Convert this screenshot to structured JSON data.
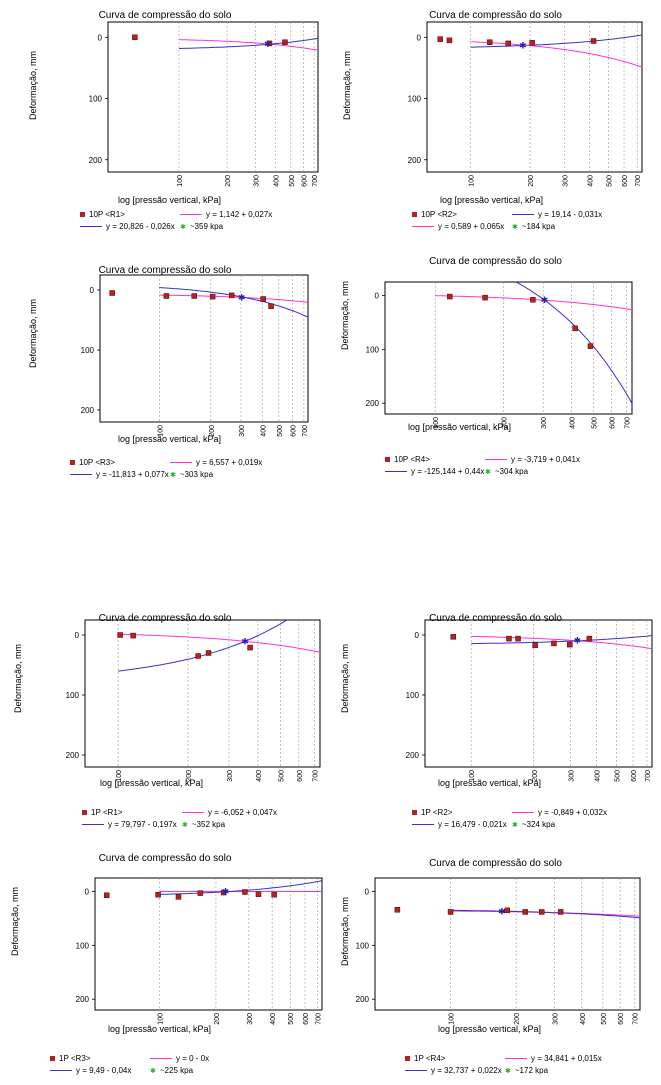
{
  "chart_data": [
    {
      "type": "line",
      "title": "Curva de compressão do solo",
      "xlabel": "log [pressão vertical, kPa]",
      "ylabel": "Deformação, mm",
      "xscale": "log",
      "xlim": [
        36,
        740
      ],
      "ylim": [
        0,
        200
      ],
      "y_ticks": [
        0,
        100,
        200
      ],
      "x_ticks": [
        100,
        200,
        300,
        400,
        500,
        600,
        700
      ],
      "series": [
        {
          "name": "10P <R1>",
          "kind": "points",
          "color": "#b22222",
          "x": [
            53,
            368,
            460
          ],
          "y": [
            0,
            10,
            8
          ]
        }
      ],
      "fits": [
        {
          "label": "y = 1,142 + 0,027x",
          "color": "#ff33cc",
          "a": 1.142,
          "b": 0.027,
          "x_from": 100
        },
        {
          "label": "y = 20,826 - 0,026x",
          "color": "#3333cc",
          "a": 20.826,
          "b": -0.026,
          "x_from": 100
        }
      ],
      "marker": {
        "label": "~359 kpa",
        "x": 359
      },
      "legend": [
        "10P <R1>",
        "y = 1,142 + 0,027x",
        "y = 20,826 - 0,026x",
        "~359 kpa"
      ]
    },
    {
      "type": "line",
      "title": "Curva de compressão do solo",
      "xlabel": "log [pressão vertical, kPa]",
      "ylabel": "Deformação, mm",
      "xscale": "log",
      "xlim": [
        60,
        740
      ],
      "ylim": [
        0,
        200
      ],
      "y_ticks": [
        0,
        100,
        200
      ],
      "x_ticks": [
        100,
        200,
        300,
        400,
        500,
        600,
        700
      ],
      "series": [
        {
          "name": "10P <R2>",
          "kind": "points",
          "color": "#b22222",
          "x": [
            70,
            78,
            125,
            155,
            205,
            420
          ],
          "y": [
            3,
            5,
            8,
            10,
            9,
            6
          ]
        }
      ],
      "fits": [
        {
          "label": "y = 19,14 - 0,031x",
          "color": "#3333cc",
          "a": 19.14,
          "b": -0.031,
          "x_from": 100
        },
        {
          "label": "y = 0,589 + 0,065x",
          "color": "#ff33cc",
          "a": 0.589,
          "b": 0.065,
          "x_from": 100
        }
      ],
      "marker": {
        "label": "~184 kpa",
        "x": 184
      },
      "legend": [
        "10P <R2>",
        "y = 19,14 - 0,031x",
        "y = 0,589 + 0,065x",
        "~184 kpa"
      ]
    },
    {
      "type": "line",
      "title": "Curva de compressão do solo",
      "xlabel": "log [pressão vertical, kPa]",
      "ylabel": "Deformação, mm",
      "xscale": "log",
      "xlim": [
        45,
        740
      ],
      "ylim": [
        0,
        200
      ],
      "y_ticks": [
        0,
        100,
        200
      ],
      "x_ticks": [
        100,
        200,
        300,
        400,
        500,
        600,
        700
      ],
      "series": [
        {
          "name": "10P <R3>",
          "kind": "points",
          "color": "#b22222",
          "x": [
            53,
            110,
            160,
            205,
            265,
            405,
            450
          ],
          "y": [
            5,
            10,
            10,
            11,
            9,
            15,
            27
          ]
        }
      ],
      "fits": [
        {
          "label": "y = 6,557 + 0,019x",
          "color": "#ff33cc",
          "a": 6.557,
          "b": 0.019,
          "x_from": 100
        },
        {
          "label": "y = -11,813 + 0,077x",
          "color": "#3333cc",
          "a": -11.813,
          "b": 0.077,
          "x_from": 100
        }
      ],
      "marker": {
        "label": "~303 kpa",
        "x": 303
      },
      "legend": [
        "10P <R3>",
        "y = 6,557 + 0,019x",
        "y = -11,813 + 0,077x",
        "~303 kpa"
      ]
    },
    {
      "type": "line",
      "title": "Curva de compressão do solo",
      "xlabel": "log [pressão vertical, kPa]",
      "ylabel": "Deformação, mm",
      "xscale": "log",
      "xlim": [
        60,
        740
      ],
      "ylim": [
        0,
        200
      ],
      "y_ticks": [
        0,
        100,
        200
      ],
      "x_ticks": [
        100,
        200,
        300,
        400,
        500,
        600,
        700
      ],
      "series": [
        {
          "name": "10P <R4>",
          "kind": "points",
          "color": "#b22222",
          "x": [
            116,
            166,
            270,
            415,
            485
          ],
          "y": [
            2,
            4,
            8,
            61,
            94
          ]
        }
      ],
      "fits": [
        {
          "label": "y = -3,719 + 0,041x",
          "color": "#ff33cc",
          "a": -3.719,
          "b": 0.041,
          "x_from": 100
        },
        {
          "label": "y = -125,144 + 0,44x",
          "color": "#3333cc",
          "a": -125.144,
          "b": 0.44,
          "x_from": 160
        }
      ],
      "marker": {
        "label": "~304 kpa",
        "x": 304
      },
      "legend": [
        "10P <R4>",
        "y = -3,719 + 0,041x",
        "y = -125,144 + 0,44x",
        "~304 kpa"
      ]
    },
    {
      "type": "line",
      "title": "Curva de compressão do solo",
      "xlabel": "log [pressão vertical, kPa]",
      "ylabel": "Deformação, mm",
      "xscale": "log",
      "xlim": [
        72,
        740
      ],
      "ylim": [
        0,
        200
      ],
      "y_ticks": [
        0,
        100,
        200
      ],
      "x_ticks": [
        100,
        200,
        300,
        400,
        500,
        600,
        700
      ],
      "series": [
        {
          "name": "1P <R1>",
          "kind": "points",
          "color": "#b22222",
          "x": [
            102,
            116,
            221,
            245,
            370
          ],
          "y": [
            0,
            1,
            35,
            30,
            21
          ]
        }
      ],
      "fits": [
        {
          "label": "y = -6,052 + 0,047x",
          "color": "#ff33cc",
          "a": -6.052,
          "b": 0.047,
          "x_from": 100
        },
        {
          "label": "y = 79,797 - 0,197x",
          "color": "#3333cc",
          "a": 79.797,
          "b": -0.197,
          "x_from": 100
        }
      ],
      "marker": {
        "label": "~352 kpa",
        "x": 352
      },
      "legend": [
        "1P <R1>",
        "y = -6,052 + 0,047x",
        "y = 79,797 - 0,197x",
        "~352 kpa"
      ]
    },
    {
      "type": "line",
      "title": "Curva de compressão do solo",
      "xlabel": "log [pressão vertical, kPa]",
      "ylabel": "Deformação, mm",
      "xscale": "log",
      "xlim": [
        60,
        740
      ],
      "ylim": [
        0,
        200
      ],
      "y_ticks": [
        0,
        100,
        200
      ],
      "x_ticks": [
        100,
        200,
        300,
        400,
        500,
        600,
        700
      ],
      "series": [
        {
          "name": "1P <R2>",
          "kind": "points",
          "color": "#b22222",
          "x": [
            82,
            152,
            168,
            203,
            250,
            298,
            370
          ],
          "y": [
            3,
            6,
            6,
            17,
            14,
            16,
            6
          ]
        }
      ],
      "fits": [
        {
          "label": "y = -0,849 + 0,032x",
          "color": "#ff33cc",
          "a": -0.849,
          "b": 0.032,
          "x_from": 100
        },
        {
          "label": "y = 16,479 - 0,021x",
          "color": "#3333cc",
          "a": 16.479,
          "b": -0.021,
          "x_from": 100
        }
      ],
      "marker": {
        "label": "~324 kpa",
        "x": 324
      },
      "legend": [
        "1P <R2>",
        "y = -0,849 + 0,032x",
        "y = 16,479 - 0,021x",
        "~324 kpa"
      ]
    },
    {
      "type": "line",
      "title": "Curva de compressão do solo",
      "xlabel": "log [pressão vertical, kPa]",
      "ylabel": "Deformação, mm",
      "xscale": "log",
      "xlim": [
        45,
        740
      ],
      "ylim": [
        0,
        200
      ],
      "y_ticks": [
        0,
        100,
        200
      ],
      "x_ticks": [
        100,
        200,
        300,
        400,
        500,
        600,
        700
      ],
      "series": [
        {
          "name": "1P <R3>",
          "kind": "points",
          "color": "#b22222",
          "x": [
            52,
            98,
            126,
            165,
            220,
            286,
            338,
            410
          ],
          "y": [
            7,
            6,
            10,
            3,
            2,
            1,
            5,
            6
          ]
        }
      ],
      "fits": [
        {
          "label": "y = 0 - 0x",
          "color": "#ff33cc",
          "a": 0,
          "b": 0,
          "x_from": 100
        },
        {
          "label": "y = 9,49 - 0,04x",
          "color": "#3333cc",
          "a": 9.49,
          "b": -0.04,
          "x_from": 100
        }
      ],
      "marker": {
        "label": "~225 kpa",
        "x": 225
      },
      "legend": [
        "1P <R3>",
        "y = 0 - 0x",
        "y = 9,49 - 0,04x",
        "~225 kpa"
      ]
    },
    {
      "type": "line",
      "title": "Curva de compressão do solo",
      "xlabel": "log [pressão vertical, kPa]",
      "ylabel": "Deformação, mm",
      "xscale": "log",
      "xlim": [
        45,
        740
      ],
      "ylim": [
        0,
        200
      ],
      "y_ticks": [
        0,
        100,
        200
      ],
      "x_ticks": [
        100,
        200,
        300,
        400,
        500,
        600,
        700
      ],
      "series": [
        {
          "name": "1P <R4>",
          "kind": "points",
          "color": "#b22222",
          "x": [
            57,
            100,
            182,
            220,
            262,
            320
          ],
          "y": [
            34,
            38,
            35,
            38,
            38,
            38
          ]
        }
      ],
      "fits": [
        {
          "label": "y = 34,841 + 0,015x",
          "color": "#ff33cc",
          "a": 34.841,
          "b": 0.015,
          "x_from": 100
        },
        {
          "label": "y = 32,737 + 0,022x",
          "color": "#3333cc",
          "a": 32.737,
          "b": 0.022,
          "x_from": 100
        }
      ],
      "marker": {
        "label": "~172 kpa",
        "x": 172
      },
      "legend": [
        "1P <R4>",
        "y = 34,841 + 0,015x",
        "y = 32,737 + 0,022x",
        "~172 kpa"
      ]
    }
  ]
}
